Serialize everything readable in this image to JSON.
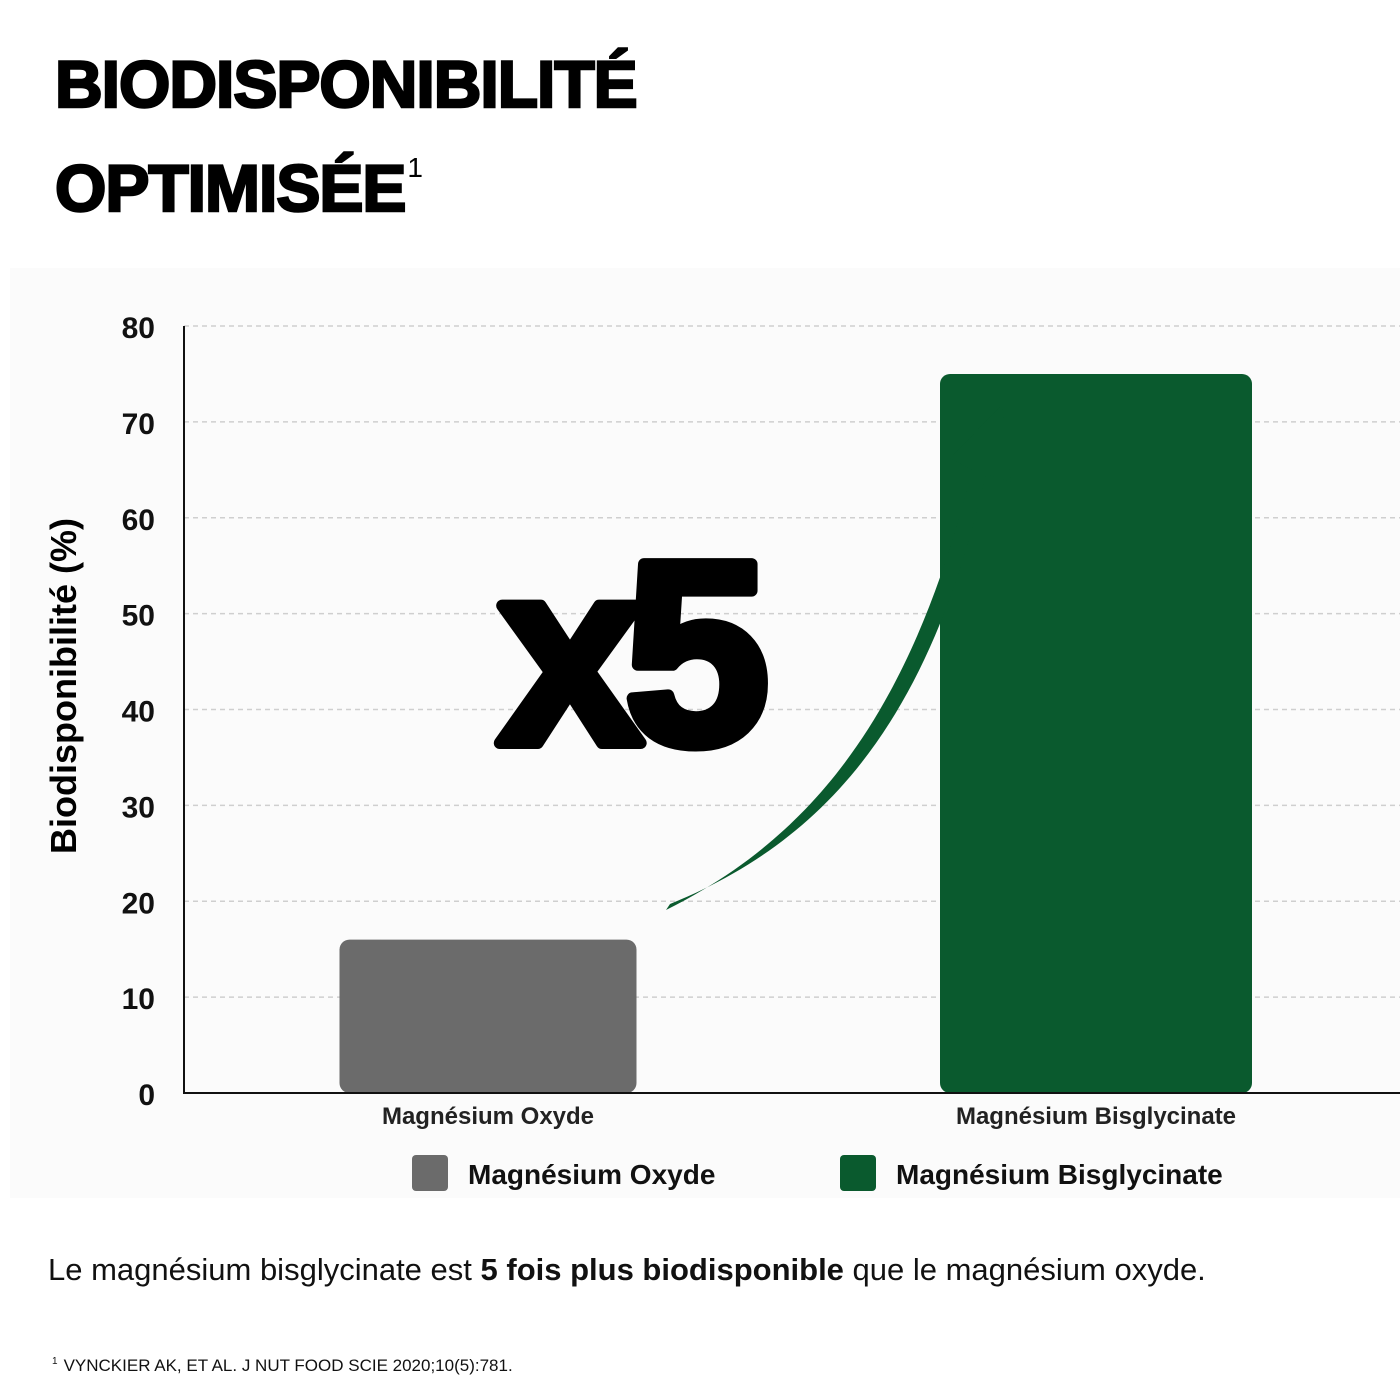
{
  "header": {
    "title_line1": "BIODISPONIBILITÉ",
    "title_line2": "OPTIMISÉE",
    "title_sup": "1"
  },
  "chart_data": {
    "type": "bar",
    "title": "",
    "xlabel": "",
    "ylabel": "Biodisponibilité (%)",
    "ylim": [
      0,
      80
    ],
    "yticks": [
      0,
      10,
      20,
      30,
      40,
      50,
      60,
      70,
      80
    ],
    "grid": true,
    "legend_position": "bottom",
    "categories": [
      "Magnésium Oxyde",
      "Magnésium Bisglycinate"
    ],
    "values": [
      16,
      75
    ],
    "colors": [
      "#6b6b6b",
      "#0a5a2e"
    ],
    "legend": [
      "Magnésium Oxyde",
      "Magnésium Bisglycinate"
    ],
    "annotation": {
      "text": "x5",
      "arrow_color": "#0a5a2e"
    }
  },
  "caption": {
    "before": "Le magnésium bisglycinate est ",
    "bold": "5 fois plus biodisponible",
    "after": " que le magnésium oxyde."
  },
  "footnote": {
    "marker": "1",
    "text": "VYNCKIER AK, ET AL. J NUT FOOD SCIE 2020;10(5):781."
  }
}
